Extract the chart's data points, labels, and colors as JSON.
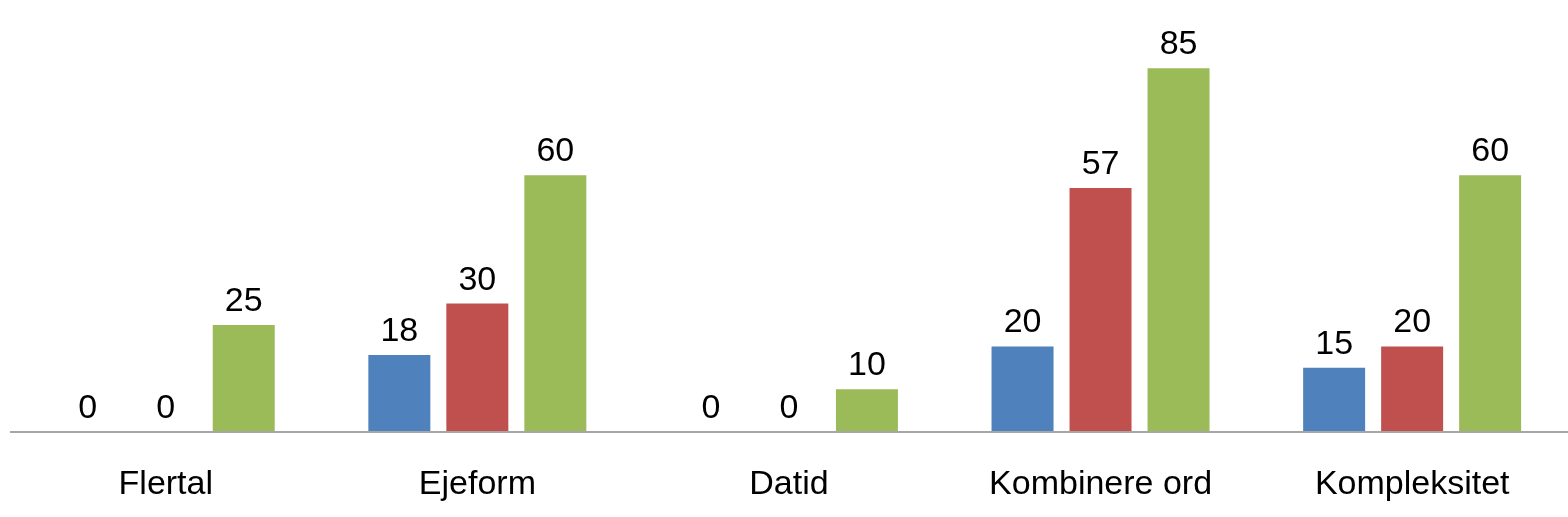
{
  "chart_data": {
    "type": "bar",
    "categories": [
      "Flertal",
      "Ejeform",
      "Datid",
      "Kombinere ord",
      "Kompleksitet"
    ],
    "series": [
      {
        "color": "#4f81bd",
        "values": [
          0,
          18,
          0,
          20,
          15
        ]
      },
      {
        "color": "#c0504d",
        "values": [
          0,
          30,
          0,
          57,
          20
        ]
      },
      {
        "color": "#9bbb59",
        "values": [
          25,
          60,
          10,
          85,
          60
        ]
      }
    ],
    "data_labels": true
  }
}
